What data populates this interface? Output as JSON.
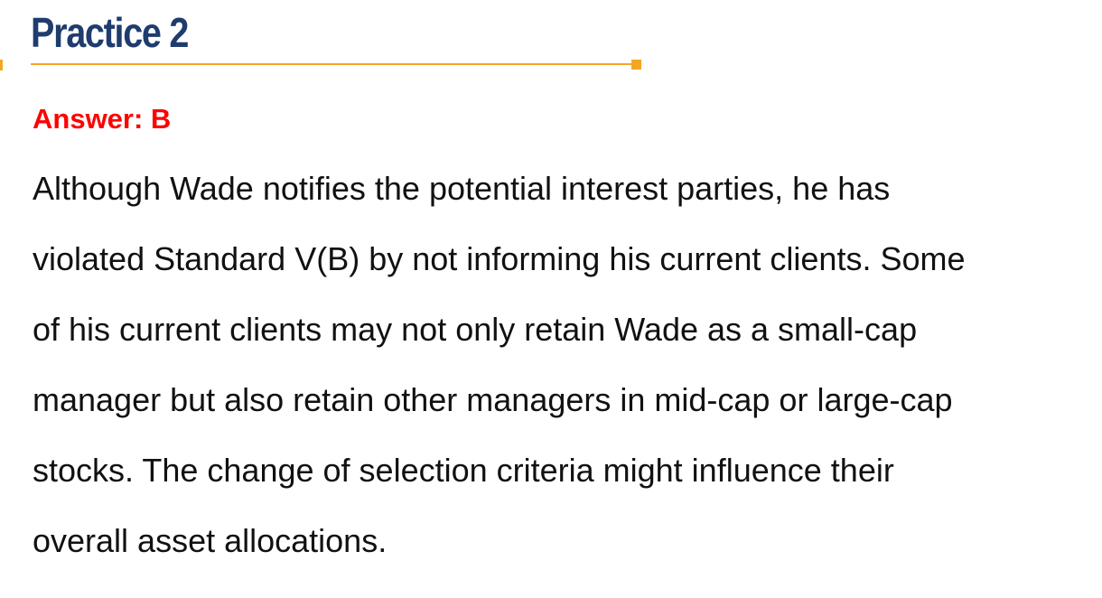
{
  "slide": {
    "title": "Practice 2",
    "answer": "Answer: B",
    "explanation_lines": [
      "Although Wade notifies the potential interest parties, he has",
      "violated Standard V(B) by not informing his current clients. Some",
      "of his current clients may not only retain Wade as a small-cap",
      "manager but also retain other managers in mid-cap or large-cap",
      "stocks. The change of selection criteria might influence their",
      "overall asset allocations."
    ]
  },
  "colors": {
    "title": "#1f3c6e",
    "accent_line": "#f5a623",
    "answer": "#ff0000",
    "body_text": "#111111",
    "background": "#ffffff"
  }
}
